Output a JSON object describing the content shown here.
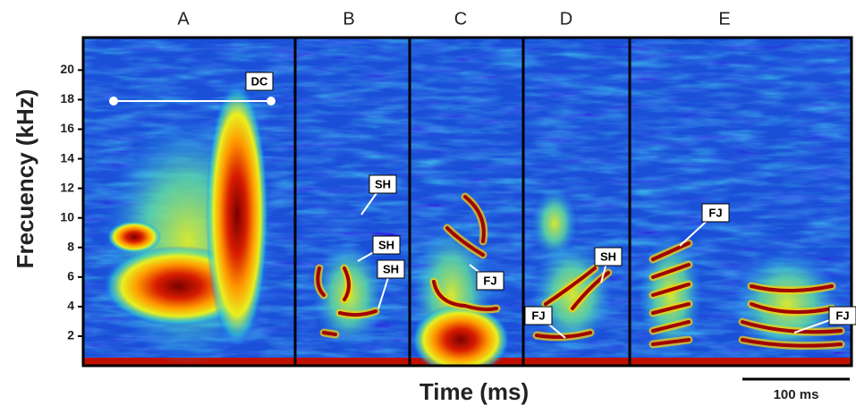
{
  "chart_data": {
    "type": "spectrogram",
    "ylabel": "Frecuency (kHz)",
    "xlabel": "Time (ms)",
    "ylim": [
      0,
      22.2
    ],
    "yticks": [
      2,
      4,
      6,
      8,
      10,
      12,
      14,
      16,
      18,
      20
    ],
    "panels": [
      "A",
      "B",
      "C",
      "D",
      "E"
    ],
    "annotations": [
      "DC",
      "SH",
      "SH",
      "SH",
      "FJ",
      "SH",
      "FJ",
      "FJ",
      "FJ"
    ],
    "scale_bar": "100 ms"
  }
}
